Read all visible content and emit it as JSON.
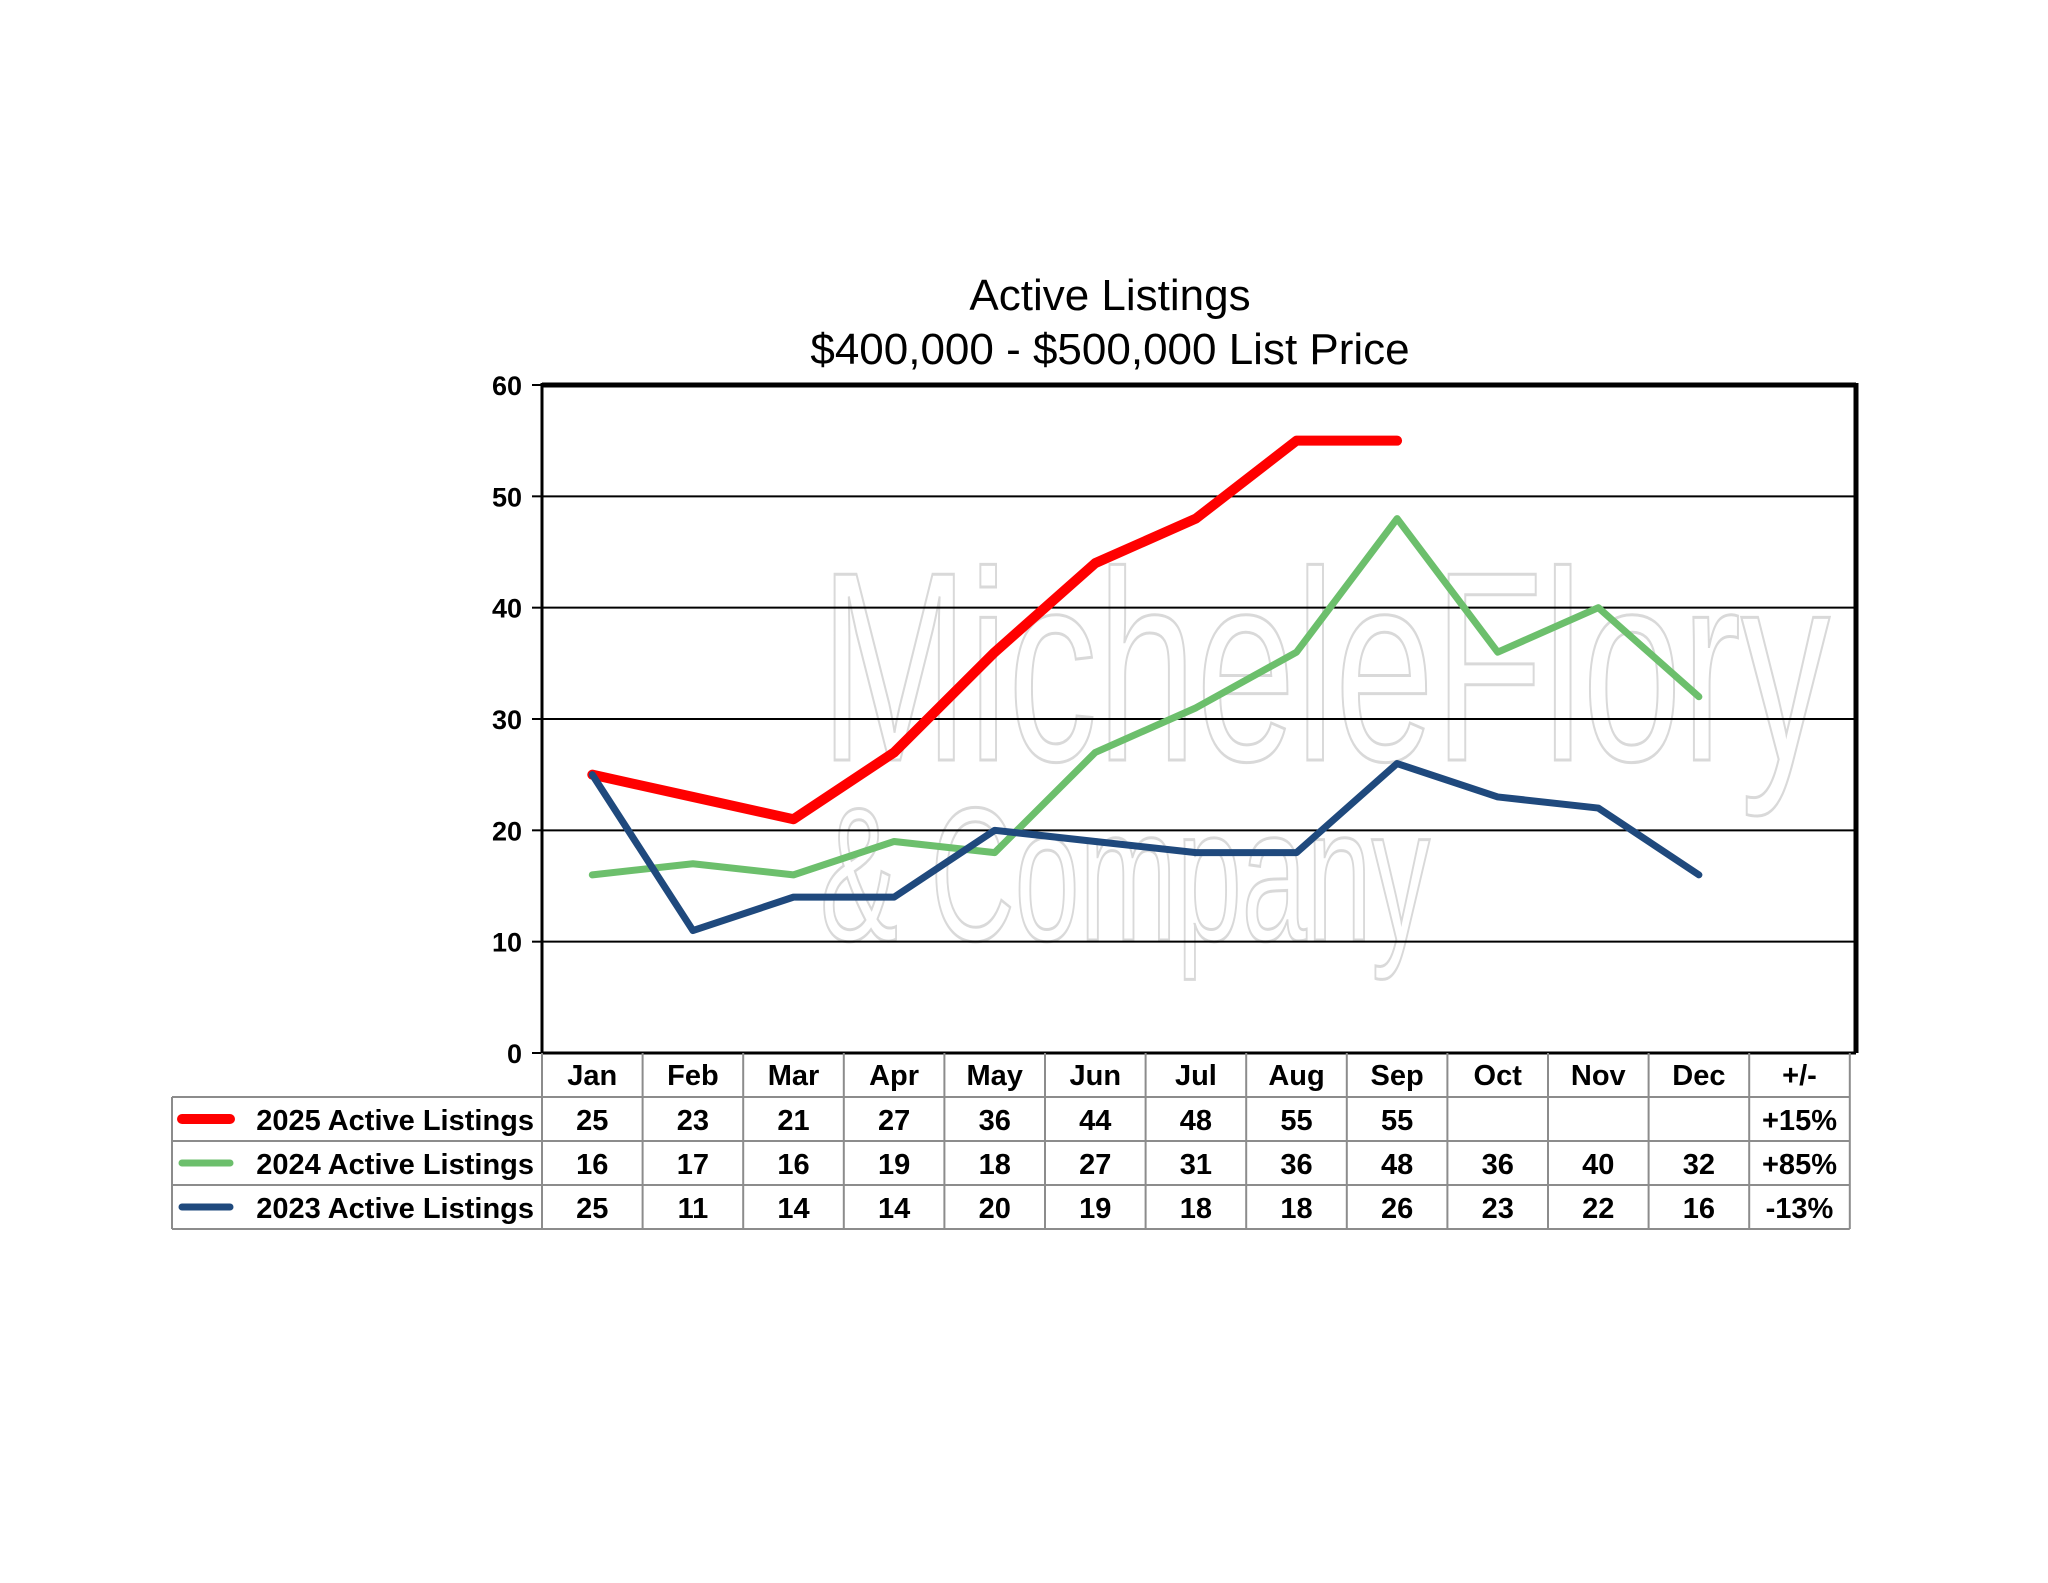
{
  "chart_data": {
    "type": "line",
    "title": "Active Listings",
    "subtitle": "$400,000 - $500,000 List Price",
    "categories": [
      "Jan",
      "Feb",
      "Mar",
      "Apr",
      "May",
      "Jun",
      "Jul",
      "Aug",
      "Sep",
      "Oct",
      "Nov",
      "Dec"
    ],
    "ylim": [
      0,
      60
    ],
    "yticks": [
      0,
      10,
      20,
      30,
      40,
      50,
      60
    ],
    "grid": true,
    "legend": "data-table",
    "change_header": "+/-",
    "series": [
      {
        "name": "2025 Active Listings",
        "color": "#ff0000",
        "values": [
          25,
          23,
          21,
          27,
          36,
          44,
          48,
          55,
          55,
          null,
          null,
          null
        ],
        "change": "+15%"
      },
      {
        "name": "2024 Active Listings",
        "color": "#6cbf6c",
        "values": [
          16,
          17,
          16,
          19,
          18,
          27,
          31,
          36,
          48,
          36,
          40,
          32
        ],
        "change": "+85%"
      },
      {
        "name": "2023 Active Listings",
        "color": "#1f497d",
        "values": [
          25,
          11,
          14,
          14,
          20,
          19,
          18,
          18,
          26,
          23,
          22,
          16
        ],
        "change": "-13%"
      }
    ]
  },
  "watermark": {
    "line1": "MicheleFlory",
    "line2": "& Company"
  }
}
